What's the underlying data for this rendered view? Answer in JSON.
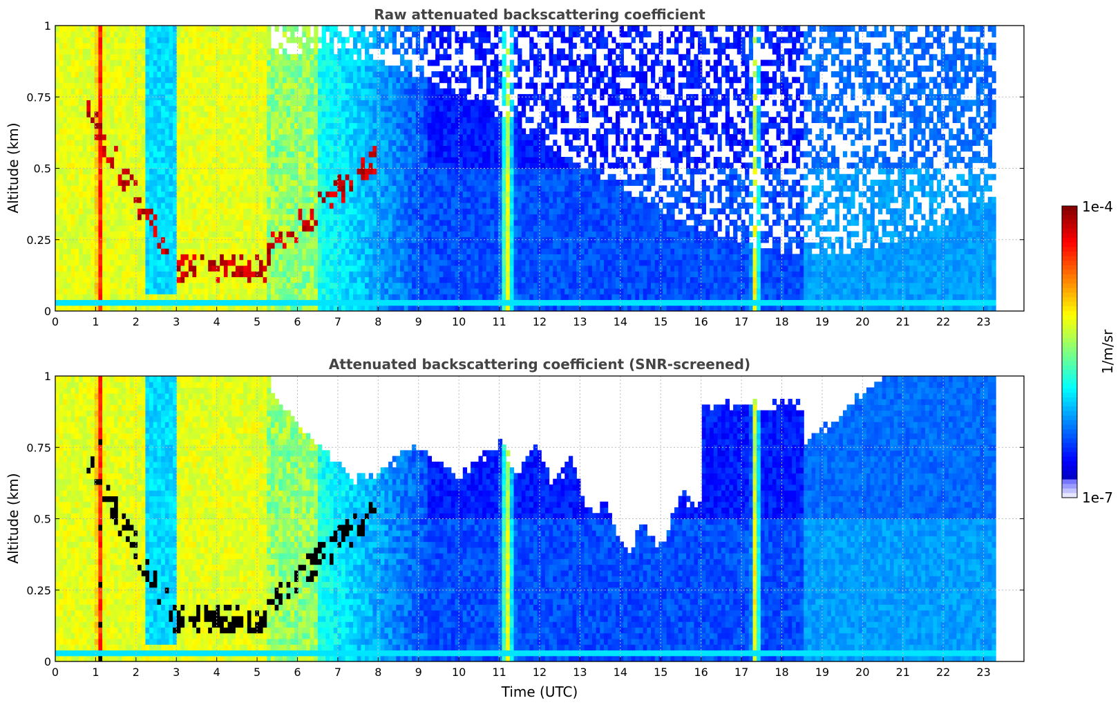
{
  "chart_data": [
    {
      "type": "heatmap",
      "title": "Raw attenuated backscattering coefficient",
      "xlabel": "",
      "ylabel": "Altitude (km)",
      "xlim": [
        0,
        24
      ],
      "ylim": [
        0,
        1
      ],
      "x_ticks": [
        "0",
        "1",
        "2",
        "3",
        "4",
        "5",
        "6",
        "7",
        "8",
        "9",
        "10",
        "11",
        "12",
        "13",
        "14",
        "15",
        "16",
        "17",
        "18",
        "19",
        "20",
        "21",
        "22",
        "23"
      ],
      "y_ticks": [
        "0",
        "0.25",
        "0.5",
        "0.75",
        "1"
      ],
      "grid": true,
      "data_end_time": 23.3,
      "screened": false
    },
    {
      "type": "heatmap",
      "title": "Attenuated backscattering coefficient (SNR-screened)",
      "xlabel": "Time (UTC)",
      "ylabel": "Altitude (km)",
      "xlim": [
        0,
        24
      ],
      "ylim": [
        0,
        1
      ],
      "x_ticks": [
        "0",
        "1",
        "2",
        "3",
        "4",
        "5",
        "6",
        "7",
        "8",
        "9",
        "10",
        "11",
        "12",
        "13",
        "14",
        "15",
        "16",
        "17",
        "18",
        "19",
        "20",
        "21",
        "22",
        "23"
      ],
      "y_ticks": [
        "0",
        "0.25",
        "0.5",
        "0.75",
        "1"
      ],
      "grid": true,
      "data_end_time": 23.3,
      "screened": true
    }
  ],
  "colorbar": {
    "label": "1/m/sr",
    "max_label": "1e-4",
    "min_label": "1e-7",
    "colormap": "jet"
  },
  "colors": {
    "frame": "#000000",
    "title": "#444444",
    "grid": "#bbbbbb"
  }
}
